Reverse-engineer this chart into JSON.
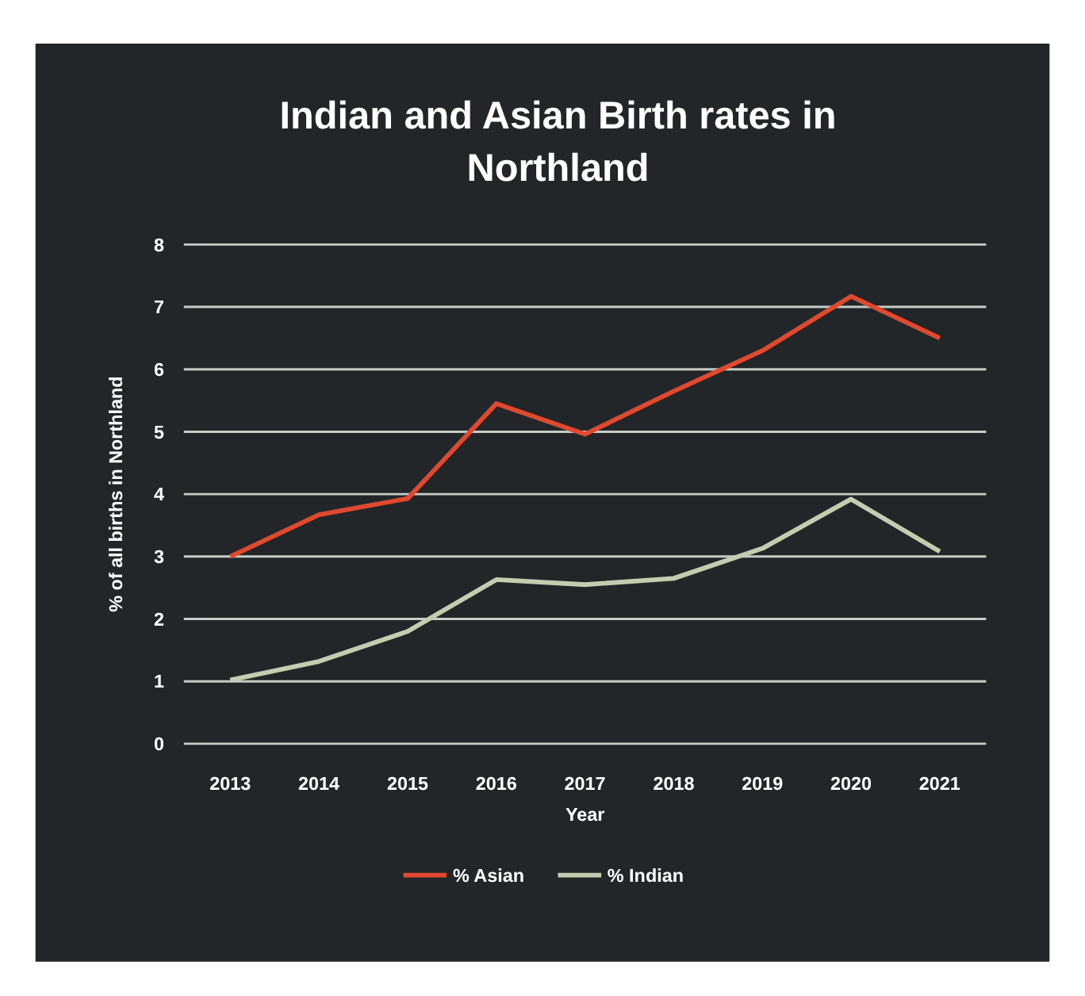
{
  "chart_data": {
    "type": "line",
    "title": "Indian and Asian  Birth rates in Northland",
    "xlabel": "Year",
    "ylabel": "% of all births  in Northland",
    "categories": [
      "2013",
      "2014",
      "2015",
      "2016",
      "2017",
      "2018",
      "2019",
      "2020",
      "2021"
    ],
    "series": [
      {
        "name": "% Asian",
        "color": "#e0492f",
        "values": [
          3.0,
          3.67,
          3.93,
          5.45,
          4.96,
          5.65,
          6.3,
          7.17,
          6.5
        ]
      },
      {
        "name": "% Indian",
        "color": "#c5cdb0",
        "values": [
          1.02,
          1.32,
          1.8,
          2.63,
          2.55,
          2.65,
          3.13,
          3.92,
          3.08
        ]
      }
    ],
    "ylim": [
      0,
      8
    ],
    "yticks": [
      0,
      1,
      2,
      3,
      4,
      5,
      6,
      7,
      8
    ],
    "grid": "y",
    "legend": "bottom",
    "marker": "none",
    "line_style": "solid"
  }
}
